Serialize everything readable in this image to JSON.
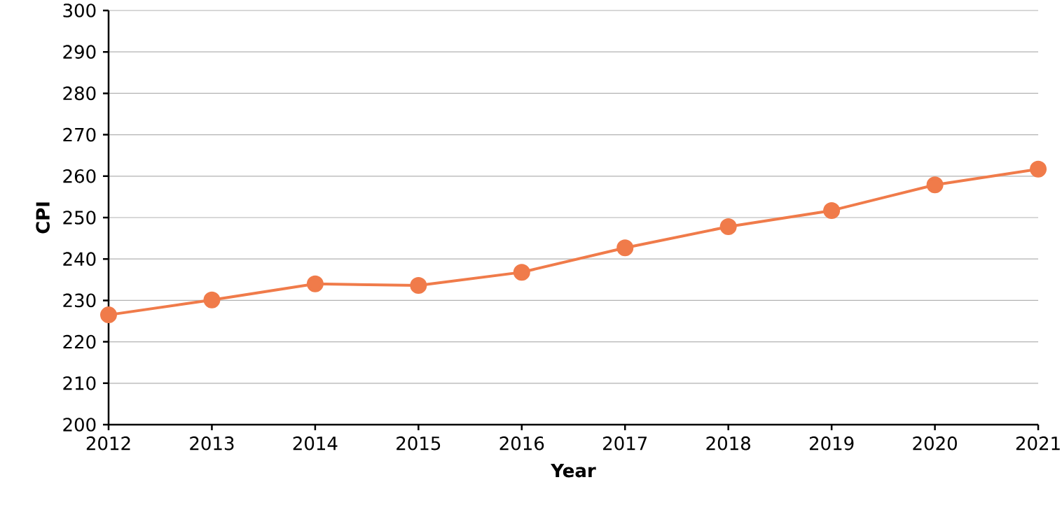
{
  "chart_data": {
    "type": "line",
    "xlabel": "Year",
    "ylabel": "CPI",
    "x": [
      2012,
      2013,
      2014,
      2015,
      2016,
      2017,
      2018,
      2019,
      2020,
      2021
    ],
    "series": [
      {
        "color": "#f07b4a",
        "values": [
          226.5,
          230.1,
          234.0,
          233.6,
          236.8,
          242.7,
          247.8,
          251.7,
          257.9,
          261.7
        ]
      }
    ],
    "xlim": [
      2012,
      2021
    ],
    "ylim": [
      200,
      300
    ],
    "xticks": [
      2012,
      2013,
      2014,
      2015,
      2016,
      2017,
      2018,
      2019,
      2020,
      2021
    ],
    "yticks": [
      200,
      210,
      220,
      230,
      240,
      250,
      260,
      270,
      280,
      290,
      300
    ],
    "grid": "y",
    "marker": "circle",
    "line_style": "solid"
  }
}
